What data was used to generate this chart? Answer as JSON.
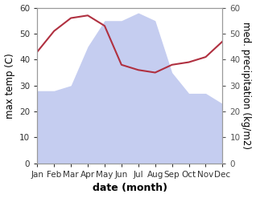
{
  "months": [
    "Jan",
    "Feb",
    "Mar",
    "Apr",
    "May",
    "Jun",
    "Jul",
    "Aug",
    "Sep",
    "Oct",
    "Nov",
    "Dec"
  ],
  "temperature": [
    43,
    51,
    56,
    57,
    53,
    38,
    36,
    35,
    38,
    39,
    41,
    47
  ],
  "precipitation": [
    28,
    28,
    30,
    45,
    55,
    55,
    58,
    55,
    35,
    27,
    27,
    23
  ],
  "temp_color": "#b03040",
  "precip_fill_color": "#c5cdf0",
  "ylim": [
    0,
    60
  ],
  "xlabel": "date (month)",
  "ylabel_left": "max temp (C)",
  "ylabel_right": "med. precipitation (kg/m2)",
  "bg_color": "#ffffff",
  "label_fontsize": 8.5,
  "xlabel_fontsize": 9,
  "tick_fontsize": 7.5,
  "spine_color": "#999999",
  "right_tick_color": "#555555"
}
